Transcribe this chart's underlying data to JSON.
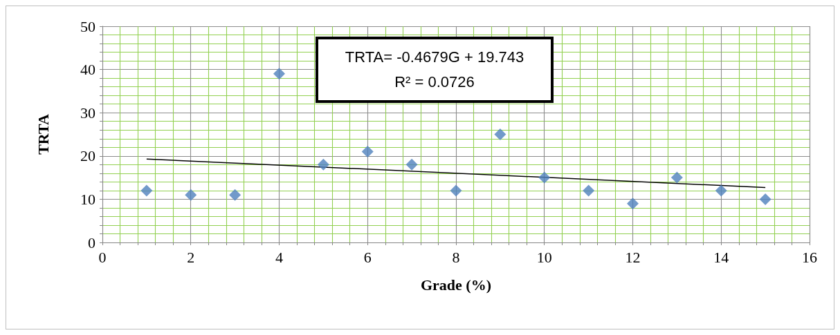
{
  "chart_data": {
    "type": "scatter",
    "xlabel": "Grade (%)",
    "ylabel": "TRTA",
    "x": [
      1,
      2,
      3,
      4,
      5,
      6,
      7,
      8,
      9,
      10,
      11,
      12,
      13,
      14,
      15
    ],
    "series": [
      {
        "color": "#4f81bd",
        "values": [
          12,
          11,
          11,
          39,
          18,
          21,
          18,
          12,
          25,
          15,
          12,
          9,
          15,
          12,
          10
        ]
      },
      {
        "type": "line",
        "marker": "none",
        "color": "#000000",
        "x": [
          1,
          15
        ],
        "values": [
          19.3,
          12.7
        ]
      }
    ],
    "marker": "diamond",
    "xlim": [
      0,
      16
    ],
    "xticks": [
      0,
      {
        "value": 0.4,
        "label": null
      },
      {
        "value": 0.8,
        "label": null
      },
      {
        "value": 1.2,
        "label": null
      },
      {
        "value": 1.6,
        "label": null
      },
      2,
      {
        "value": 2.4,
        "label": null
      },
      {
        "value": 2.8,
        "label": null
      },
      {
        "value": 3.2,
        "label": null
      },
      {
        "value": 3.6,
        "label": null
      },
      4,
      {
        "value": 4.4,
        "label": null
      },
      {
        "value": 4.8,
        "label": null
      },
      {
        "value": 5.2,
        "label": null
      },
      {
        "value": 5.6,
        "label": null
      },
      6,
      {
        "value": 6.4,
        "label": null
      },
      {
        "value": 6.8,
        "label": null
      },
      {
        "value": 7.2,
        "label": null
      },
      {
        "value": 7.6,
        "label": null
      },
      8,
      {
        "value": 8.4,
        "label": null
      },
      {
        "value": 8.8,
        "label": null
      },
      {
        "value": 9.2,
        "label": null
      },
      {
        "value": 9.6,
        "label": null
      },
      10,
      {
        "value": 10.4,
        "label": null
      },
      {
        "value": 10.8,
        "label": null
      },
      {
        "value": 11.2,
        "label": null
      },
      {
        "value": 11.6,
        "label": null
      },
      12,
      {
        "value": 12.4,
        "label": null
      },
      {
        "value": 12.8,
        "label": null
      },
      {
        "value": 13.2,
        "label": null
      },
      {
        "value": 13.6,
        "label": null
      },
      14,
      {
        "value": 14.4,
        "label": null
      },
      {
        "value": 14.8,
        "label": null
      },
      {
        "value": 15.2,
        "label": null
      },
      {
        "value": 15.6,
        "label": null
      },
      16
    ],
    "ylim": [
      0,
      50
    ],
    "yticks": [
      0,
      {
        "value": 2,
        "label": null
      },
      {
        "value": 4,
        "label": null
      },
      {
        "value": 6,
        "label": null
      },
      {
        "value": 8,
        "label": null
      },
      10,
      {
        "value": 12,
        "label": null
      },
      {
        "value": 14,
        "label": null
      },
      {
        "value": 16,
        "label": null
      },
      {
        "value": 18,
        "label": null
      },
      20,
      {
        "value": 22,
        "label": null
      },
      {
        "value": 24,
        "label": null
      },
      {
        "value": 26,
        "label": null
      },
      {
        "value": 28,
        "label": null
      },
      30,
      {
        "value": 32,
        "label": null
      },
      {
        "value": 34,
        "label": null
      },
      {
        "value": 36,
        "label": null
      },
      {
        "value": 38,
        "label": null
      },
      40,
      {
        "value": 42,
        "label": null
      },
      {
        "value": 44,
        "label": null
      },
      {
        "value": 46,
        "label": null
      },
      {
        "value": 48,
        "label": null
      },
      50
    ],
    "grid": true,
    "annotations": [
      "TRTA= -0.4679G + 19.743",
      "R² = 0.0726"
    ]
  }
}
